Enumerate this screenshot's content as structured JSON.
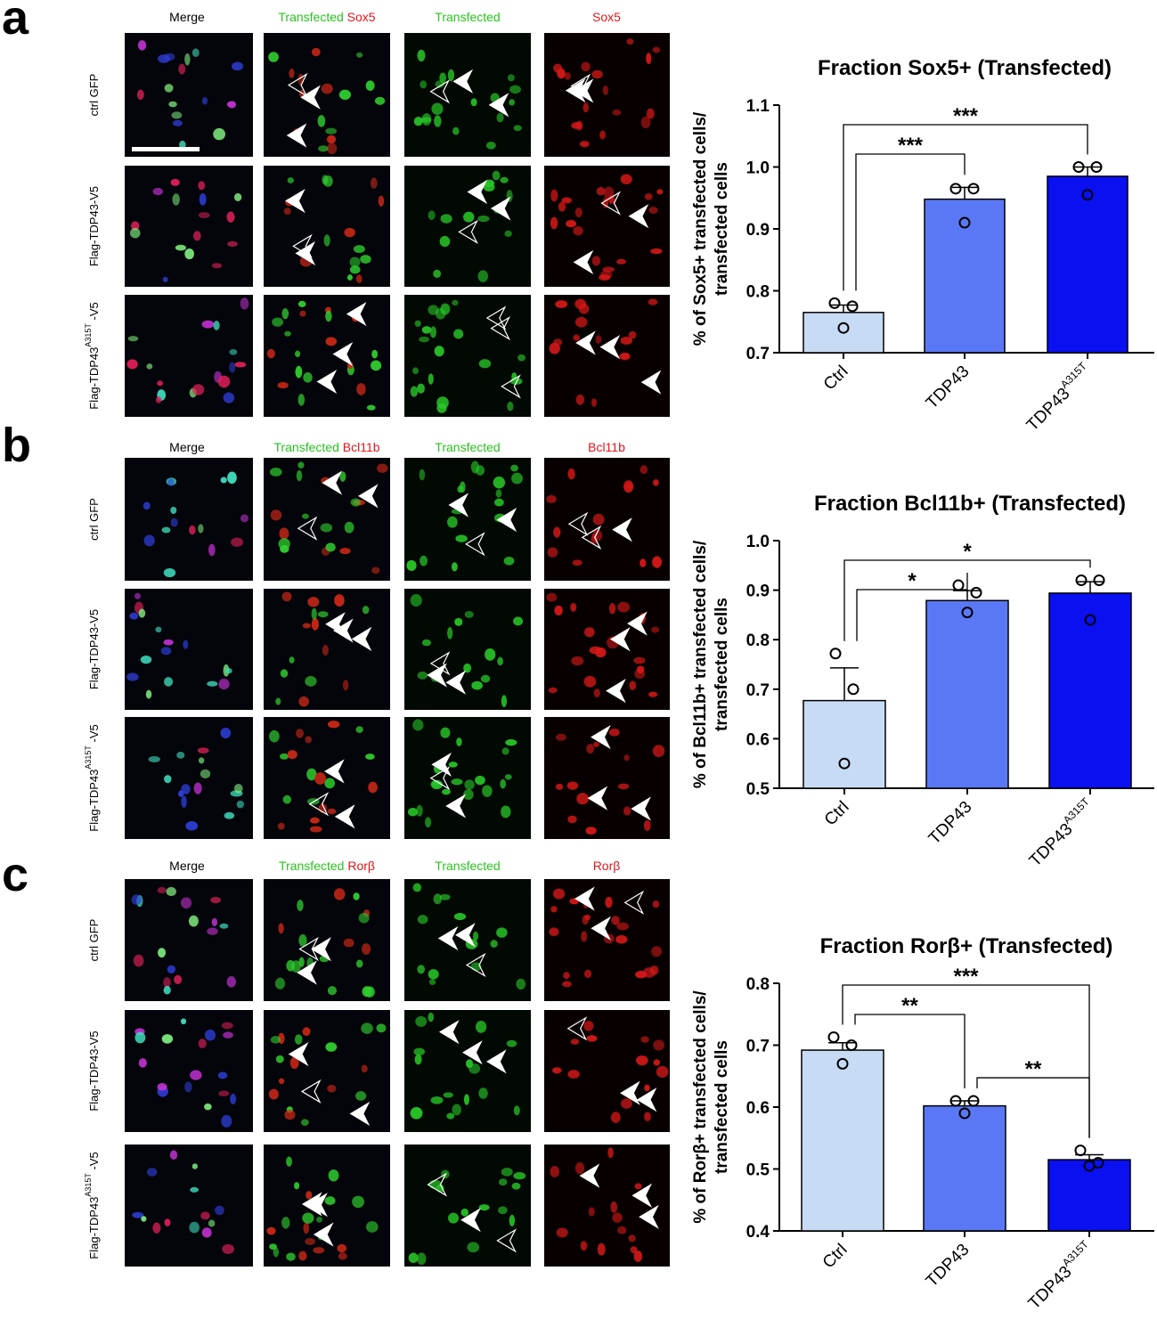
{
  "panels": [
    {
      "letter": "a",
      "col_headers": [
        {
          "parts": [
            {
              "text": "Merge",
              "color": "#000000"
            }
          ]
        },
        {
          "parts": [
            {
              "text": "Transfected",
              "color": "#27c41c"
            },
            {
              "text": "Sox5",
              "color": "#e3141c"
            }
          ]
        },
        {
          "parts": [
            {
              "text": "Transfected",
              "color": "#27c41c"
            }
          ]
        },
        {
          "parts": [
            {
              "text": "Sox5",
              "color": "#e3141c"
            }
          ]
        }
      ],
      "row_labels": [
        {
          "main": "ctrl GFP",
          "sup": "",
          "suffix": ""
        },
        {
          "main": "Flag-TDP43-V5",
          "sup": "",
          "suffix": ""
        },
        {
          "main": "Flag-TDP43",
          "sup": "A315T",
          "suffix": "-V5"
        }
      ]
    },
    {
      "letter": "b",
      "col_headers": [
        {
          "parts": [
            {
              "text": "Merge",
              "color": "#000000"
            }
          ]
        },
        {
          "parts": [
            {
              "text": "Transfected",
              "color": "#27c41c"
            },
            {
              "text": "Bcl11b",
              "color": "#e3141c"
            }
          ]
        },
        {
          "parts": [
            {
              "text": "Transfected",
              "color": "#27c41c"
            }
          ]
        },
        {
          "parts": [
            {
              "text": "Bcl11b",
              "color": "#e3141c"
            }
          ]
        }
      ],
      "row_labels": [
        {
          "main": "ctrl GFP",
          "sup": "",
          "suffix": ""
        },
        {
          "main": "Flag-TDP43-V5",
          "sup": "",
          "suffix": ""
        },
        {
          "main": "Flag-TDP43",
          "sup": "A315T",
          "suffix": "-V5"
        }
      ]
    },
    {
      "letter": "c",
      "col_headers": [
        {
          "parts": [
            {
              "text": "Merge",
              "color": "#000000"
            }
          ]
        },
        {
          "parts": [
            {
              "text": "Transfected",
              "color": "#27c41c"
            },
            {
              "text": "Rorβ",
              "color": "#e3141c"
            }
          ]
        },
        {
          "parts": [
            {
              "text": "Transfected",
              "color": "#27c41c"
            }
          ]
        },
        {
          "parts": [
            {
              "text": "Rorβ",
              "color": "#e3141c"
            }
          ]
        }
      ],
      "row_labels": [
        {
          "main": "ctrl GFP",
          "sup": "",
          "suffix": ""
        },
        {
          "main": "Flag-TDP43-V5",
          "sup": "",
          "suffix": ""
        },
        {
          "main": "Flag-TDP43",
          "sup": "A315T",
          "suffix": "-V5"
        }
      ]
    }
  ],
  "bar_colors": [
    "#c8dbf5",
    "#5a78f5",
    "#0a10f0"
  ],
  "chart_data": [
    {
      "type": "bar",
      "title": "Fraction Sox5+ (Transfected)",
      "ylabel": [
        "% of Sox5+ transfected cells/",
        "transfected cells"
      ],
      "categories": [
        {
          "main": "Ctrl",
          "sup": ""
        },
        {
          "main": "TDP43",
          "sup": ""
        },
        {
          "main": "TDP43",
          "sup": "A315T"
        }
      ],
      "ylim": [
        0.7,
        1.1
      ],
      "yticks": [
        "0.7",
        "0.8",
        "0.9",
        "1.0",
        "1.1"
      ],
      "means": [
        0.765,
        0.948,
        0.985
      ],
      "sem": [
        0.012,
        0.019,
        0.015
      ],
      "points": [
        [
          0.78,
          0.775,
          0.74
        ],
        [
          0.965,
          0.965,
          0.91
        ],
        [
          1.0,
          1.0,
          0.955
        ]
      ],
      "comparisons": [
        {
          "from": 0,
          "to": 1,
          "label": "***"
        },
        {
          "from": 0,
          "to": 2,
          "label": "***"
        }
      ]
    },
    {
      "type": "bar",
      "title": "Fraction Bcl11b+ (Transfected)",
      "ylabel": [
        "% of Bcl11b+ transfected cells/",
        "transfected cells"
      ],
      "categories": [
        {
          "main": "Ctrl",
          "sup": ""
        },
        {
          "main": "TDP43",
          "sup": ""
        },
        {
          "main": "TDP43",
          "sup": "A315T"
        }
      ],
      "ylim": [
        0.5,
        1.0
      ],
      "yticks": [
        "0.5",
        "0.6",
        "0.7",
        "0.8",
        "0.9",
        "1.0"
      ],
      "means": [
        0.677,
        0.879,
        0.894
      ],
      "sem": [
        0.066,
        0.02,
        0.023
      ],
      "points": [
        [
          0.772,
          0.7,
          0.55
        ],
        [
          0.91,
          0.895,
          0.855
        ],
        [
          0.92,
          0.92,
          0.84
        ]
      ],
      "comparisons": [
        {
          "from": 0,
          "to": 1,
          "label": "*"
        },
        {
          "from": 0,
          "to": 2,
          "label": "*"
        }
      ]
    },
    {
      "type": "bar",
      "title": "Fraction Rorβ+ (Transfected)",
      "ylabel": [
        "% of Rorβ+ transfected cells/",
        "transfected cells"
      ],
      "categories": [
        {
          "main": "Ctrl",
          "sup": ""
        },
        {
          "main": "TDP43",
          "sup": ""
        },
        {
          "main": "TDP43",
          "sup": "A315T"
        }
      ],
      "ylim": [
        0.4,
        0.8
      ],
      "yticks": [
        "0.4",
        "0.5",
        "0.6",
        "0.7",
        "0.8"
      ],
      "means": [
        0.692,
        0.602,
        0.515
      ],
      "sem": [
        0.012,
        0.008,
        0.008
      ],
      "points": [
        [
          0.713,
          0.7,
          0.67
        ],
        [
          0.61,
          0.61,
          0.59
        ],
        [
          0.53,
          0.51,
          0.505
        ]
      ],
      "comparisons": [
        {
          "from": 0,
          "to": 1,
          "label": "**"
        },
        {
          "from": 0,
          "to": 2,
          "label": "***"
        },
        {
          "from": 1,
          "to": 2,
          "label": "**"
        }
      ]
    }
  ]
}
